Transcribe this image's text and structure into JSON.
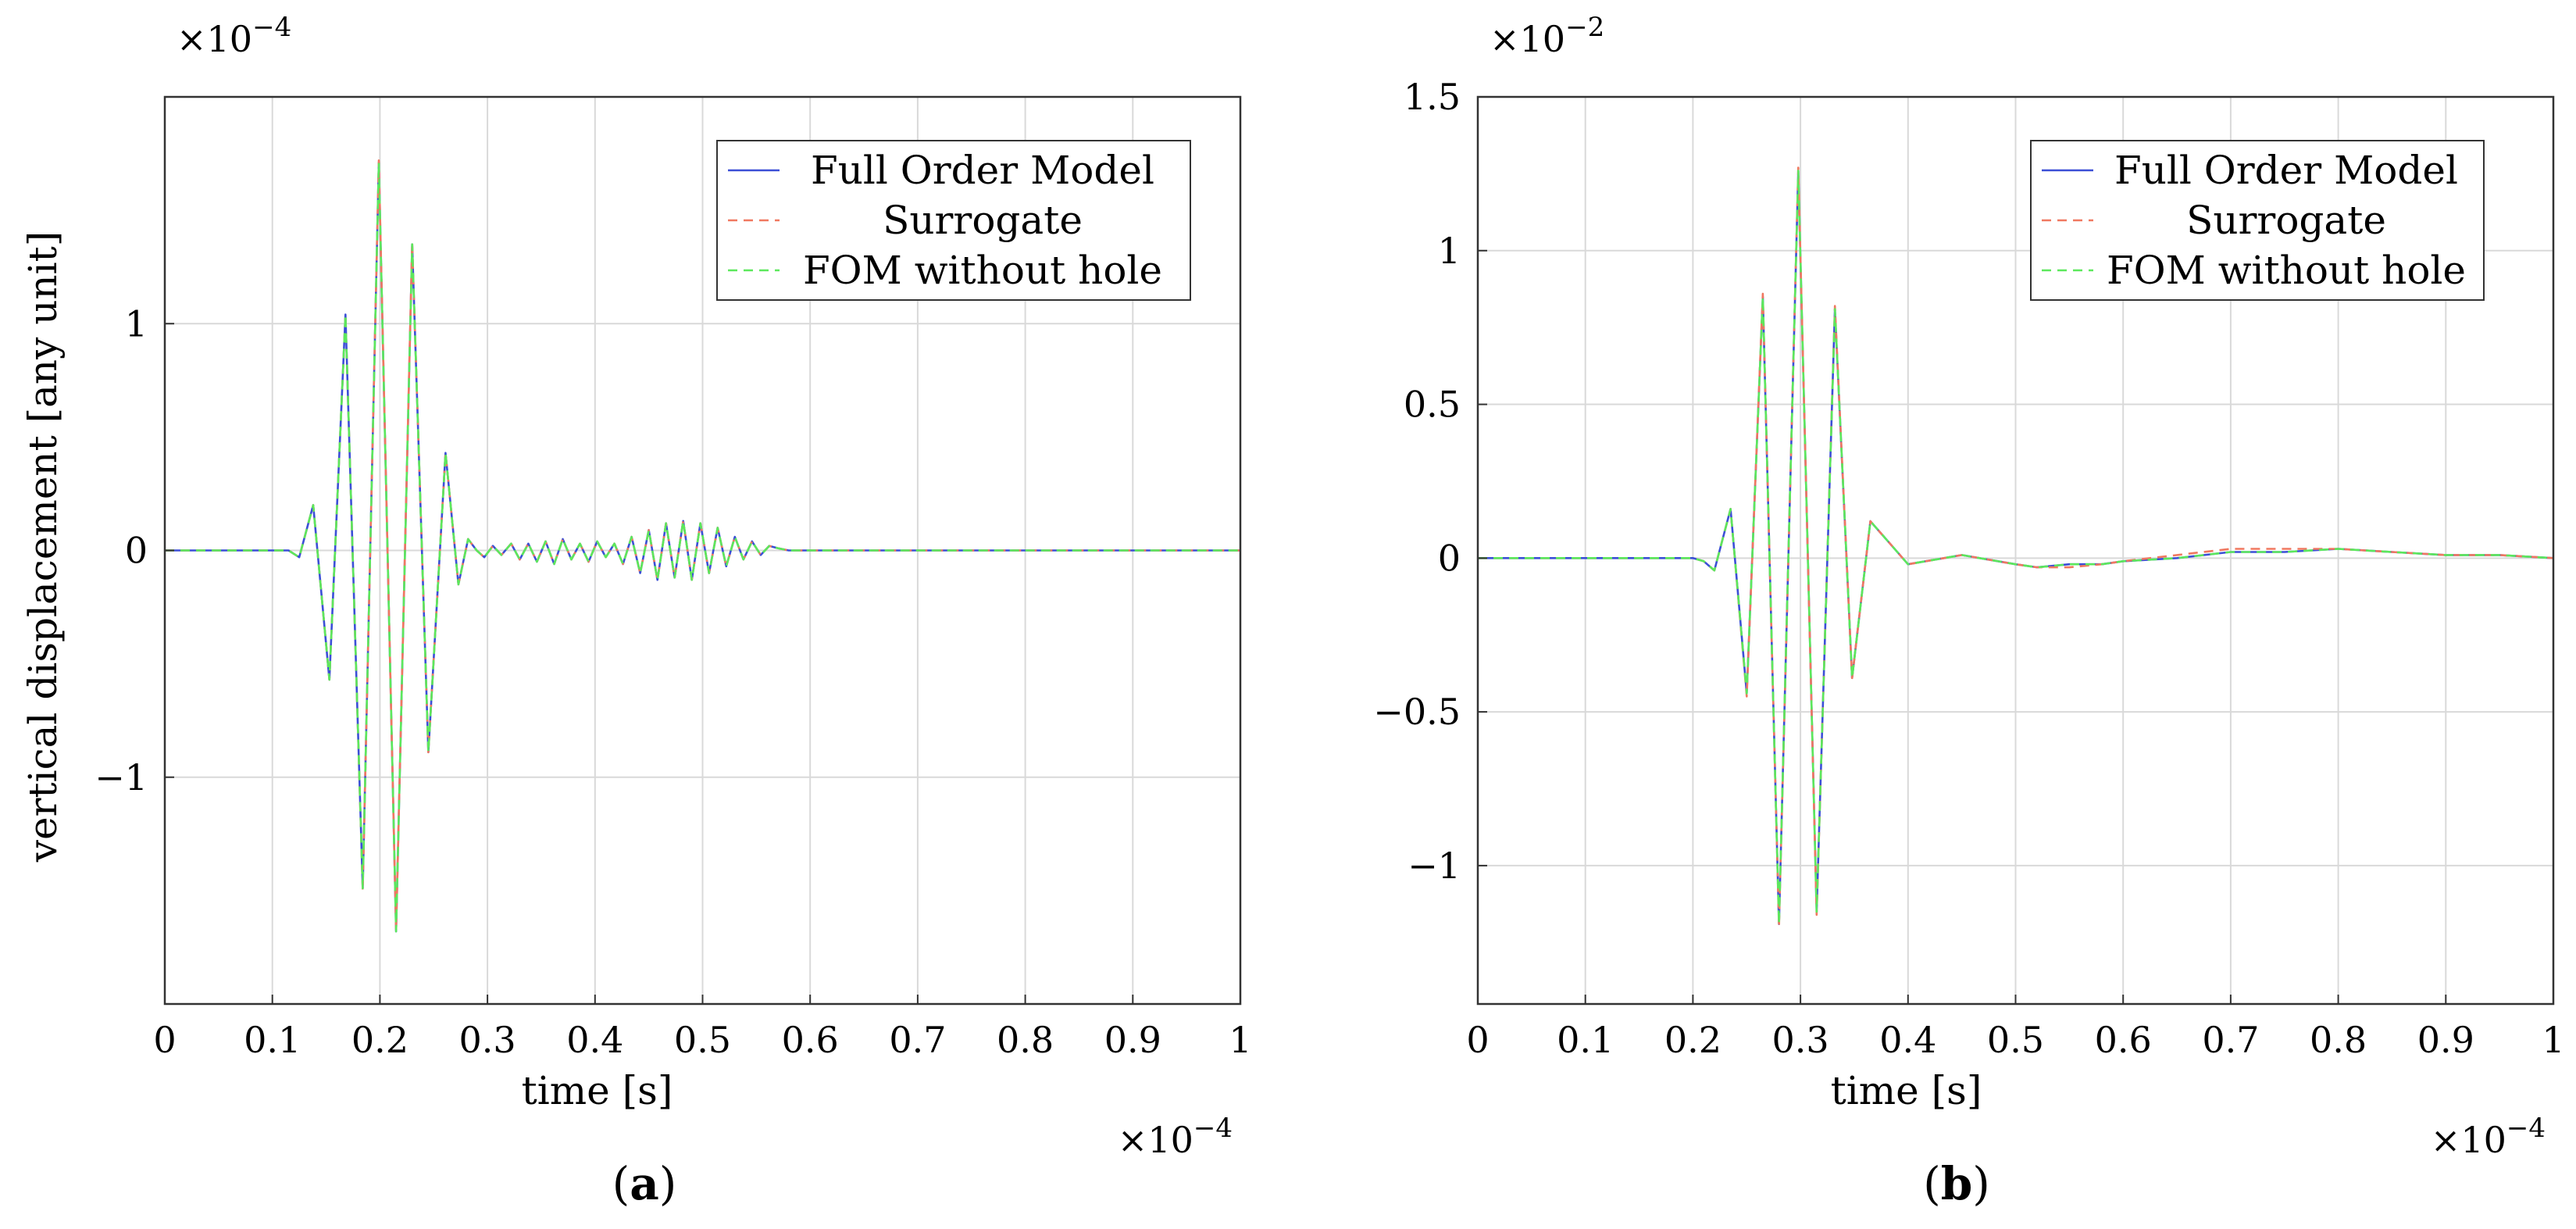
{
  "chart_data": [
    {
      "type": "line",
      "panel": "a",
      "caption": {
        "open": "(",
        "letter": "a",
        "close": ")"
      },
      "xlabel": "time [s]",
      "ylabel": "vertical displacement [any unit]",
      "x_multiplier": {
        "base": "×10",
        "exp": "−4"
      },
      "y_multiplier": {
        "base": "×10",
        "exp": "−4"
      },
      "xlim": [
        0,
        1
      ],
      "ylim": [
        -2,
        2
      ],
      "x_ticks": [
        0,
        0.1,
        0.2,
        0.3,
        0.4,
        0.5,
        0.6,
        0.7,
        0.8,
        0.9,
        1
      ],
      "x_tick_labels": [
        "0",
        "0.1",
        "0.2",
        "0.3",
        "0.4",
        "0.5",
        "0.6",
        "0.7",
        "0.8",
        "0.9",
        "1"
      ],
      "y_ticks": [
        -1,
        0,
        1
      ],
      "y_tick_labels": [
        "−1",
        "0",
        "1"
      ],
      "grid": true,
      "legend_position": "top-right",
      "legend": [
        "Full Order Model",
        "Surrogate",
        "FOM without hole"
      ],
      "series": [
        {
          "name": "Full Order Model",
          "style": "solid",
          "color": "#3b4fd6",
          "x": [
            0,
            0.115,
            0.125,
            0.138,
            0.153,
            0.168,
            0.184,
            0.199,
            0.215,
            0.23,
            0.245,
            0.261,
            0.273,
            0.282,
            0.29,
            0.297,
            0.305,
            0.313,
            0.322,
            0.33,
            0.338,
            0.346,
            0.354,
            0.362,
            0.37,
            0.378,
            0.386,
            0.394,
            0.402,
            0.41,
            0.418,
            0.426,
            0.434,
            0.442,
            0.45,
            0.458,
            0.466,
            0.474,
            0.482,
            0.49,
            0.498,
            0.506,
            0.514,
            0.522,
            0.53,
            0.538,
            0.546,
            0.554,
            0.562,
            0.57,
            0.58,
            0.6,
            0.7,
            0.8,
            0.9,
            1.0
          ],
          "values": [
            0,
            0,
            -0.03,
            0.2,
            -0.57,
            1.04,
            -1.49,
            1.71,
            -1.68,
            1.35,
            -0.89,
            0.43,
            -0.15,
            0.05,
            0.0,
            -0.03,
            0.02,
            -0.02,
            0.03,
            -0.04,
            0.03,
            -0.05,
            0.04,
            -0.06,
            0.05,
            -0.04,
            0.03,
            -0.05,
            0.04,
            -0.03,
            0.03,
            -0.06,
            0.06,
            -0.1,
            0.09,
            -0.13,
            0.12,
            -0.12,
            0.13,
            -0.13,
            0.12,
            -0.1,
            0.1,
            -0.07,
            0.06,
            -0.04,
            0.04,
            -0.02,
            0.02,
            0.01,
            0.0,
            0.0,
            0.0,
            0.0,
            0.0,
            0.0
          ]
        },
        {
          "name": "Surrogate",
          "style": "dashed",
          "color": "#f07860",
          "x": [
            0,
            0.115,
            0.125,
            0.138,
            0.153,
            0.168,
            0.184,
            0.199,
            0.215,
            0.23,
            0.245,
            0.261,
            0.273,
            0.282,
            0.29,
            0.297,
            0.305,
            0.313,
            0.322,
            0.33,
            0.338,
            0.346,
            0.354,
            0.362,
            0.37,
            0.378,
            0.386,
            0.394,
            0.402,
            0.41,
            0.418,
            0.426,
            0.434,
            0.442,
            0.45,
            0.458,
            0.466,
            0.474,
            0.482,
            0.49,
            0.498,
            0.506,
            0.514,
            0.522,
            0.53,
            0.538,
            0.546,
            0.554,
            0.562,
            0.57,
            0.58,
            0.6,
            0.7,
            0.8,
            0.9,
            1.0
          ],
          "values": [
            0,
            0,
            -0.03,
            0.2,
            -0.57,
            1.04,
            -1.5,
            1.72,
            -1.68,
            1.36,
            -0.89,
            0.43,
            -0.15,
            0.05,
            0.0,
            -0.03,
            0.02,
            -0.02,
            0.03,
            -0.04,
            0.03,
            -0.05,
            0.04,
            -0.06,
            0.05,
            -0.04,
            0.03,
            -0.05,
            0.04,
            -0.03,
            0.03,
            -0.06,
            0.06,
            -0.1,
            0.09,
            -0.13,
            0.12,
            -0.12,
            0.13,
            -0.13,
            0.12,
            -0.1,
            0.1,
            -0.07,
            0.06,
            -0.04,
            0.04,
            -0.02,
            0.02,
            0.01,
            0.0,
            0.0,
            0.0,
            0.0,
            0.0,
            0.0
          ]
        },
        {
          "name": "FOM without hole",
          "style": "dashed",
          "color": "#5ce85c",
          "x": [
            0,
            0.115,
            0.125,
            0.138,
            0.153,
            0.168,
            0.184,
            0.199,
            0.215,
            0.23,
            0.245,
            0.261,
            0.273,
            0.282,
            0.29,
            0.297,
            0.305,
            0.313,
            0.322,
            0.33,
            0.338,
            0.346,
            0.354,
            0.362,
            0.37,
            0.378,
            0.386,
            0.394,
            0.402,
            0.41,
            0.418,
            0.426,
            0.434,
            0.442,
            0.45,
            0.458,
            0.466,
            0.474,
            0.482,
            0.49,
            0.498,
            0.506,
            0.514,
            0.522,
            0.53,
            0.538,
            0.546,
            0.554,
            0.562,
            0.57,
            0.58,
            0.6,
            0.7,
            0.8,
            0.9,
            1.0
          ],
          "values": [
            0,
            0,
            -0.03,
            0.2,
            -0.57,
            1.04,
            -1.49,
            1.71,
            -1.68,
            1.35,
            -0.89,
            0.43,
            -0.15,
            0.05,
            0.0,
            -0.03,
            0.02,
            -0.02,
            0.03,
            -0.04,
            0.03,
            -0.05,
            0.04,
            -0.06,
            0.05,
            -0.04,
            0.03,
            -0.05,
            0.04,
            -0.03,
            0.03,
            -0.06,
            0.06,
            -0.1,
            0.09,
            -0.13,
            0.12,
            -0.12,
            0.13,
            -0.13,
            0.12,
            -0.1,
            0.1,
            -0.07,
            0.06,
            -0.04,
            0.04,
            -0.02,
            0.02,
            0.01,
            0.0,
            0.0,
            0.0,
            0.0,
            0.0,
            0.0
          ]
        }
      ]
    },
    {
      "type": "line",
      "panel": "b",
      "caption": {
        "open": "(",
        "letter": "b",
        "close": ")"
      },
      "xlabel": "time [s]",
      "ylabel": "",
      "x_multiplier": {
        "base": "×10",
        "exp": "−4"
      },
      "y_multiplier": {
        "base": "×10",
        "exp": "−2"
      },
      "xlim": [
        0,
        1
      ],
      "ylim": [
        -1.45,
        1.5
      ],
      "x_ticks": [
        0,
        0.1,
        0.2,
        0.3,
        0.4,
        0.5,
        0.6,
        0.7,
        0.8,
        0.9,
        1
      ],
      "x_tick_labels": [
        "0",
        "0.1",
        "0.2",
        "0.3",
        "0.4",
        "0.5",
        "0.6",
        "0.7",
        "0.8",
        "0.9",
        "1"
      ],
      "y_ticks": [
        -1,
        -0.5,
        0,
        0.5,
        1,
        1.5
      ],
      "y_tick_labels": [
        "−1",
        "−0.5",
        "0",
        "0.5",
        "1",
        "1.5"
      ],
      "grid": true,
      "legend_position": "top-right",
      "legend": [
        "Full Order Model",
        "Surrogate",
        "FOM without hole"
      ],
      "series": [
        {
          "name": "Full Order Model",
          "style": "solid",
          "color": "#3b4fd6",
          "x": [
            0,
            0.2,
            0.21,
            0.22,
            0.235,
            0.25,
            0.265,
            0.28,
            0.298,
            0.315,
            0.332,
            0.348,
            0.365,
            0.38,
            0.4,
            0.45,
            0.5,
            0.52,
            0.55,
            0.58,
            0.6,
            0.65,
            0.7,
            0.75,
            0.8,
            0.85,
            0.9,
            0.95,
            1.0
          ],
          "values": [
            0,
            0,
            -0.01,
            -0.04,
            0.16,
            -0.44,
            0.85,
            -1.19,
            1.26,
            -1.15,
            0.81,
            -0.39,
            0.12,
            0.06,
            -0.02,
            0.01,
            -0.02,
            -0.03,
            -0.02,
            -0.02,
            -0.01,
            0.0,
            0.02,
            0.02,
            0.03,
            0.02,
            0.01,
            0.01,
            0.0
          ]
        },
        {
          "name": "Surrogate",
          "style": "dashed",
          "color": "#f07860",
          "x": [
            0,
            0.2,
            0.21,
            0.22,
            0.235,
            0.25,
            0.265,
            0.28,
            0.298,
            0.315,
            0.332,
            0.348,
            0.365,
            0.38,
            0.4,
            0.45,
            0.5,
            0.52,
            0.55,
            0.58,
            0.6,
            0.65,
            0.7,
            0.75,
            0.8,
            0.85,
            0.9,
            0.95,
            1.0
          ],
          "values": [
            0,
            0,
            -0.01,
            -0.04,
            0.16,
            -0.45,
            0.86,
            -1.2,
            1.27,
            -1.16,
            0.82,
            -0.39,
            0.12,
            0.06,
            -0.02,
            0.01,
            -0.02,
            -0.03,
            -0.03,
            -0.02,
            -0.01,
            0.01,
            0.03,
            0.03,
            0.03,
            0.02,
            0.01,
            0.01,
            0.0
          ]
        },
        {
          "name": "FOM without hole",
          "style": "dashed",
          "color": "#5ce85c",
          "x": [
            0,
            0.2,
            0.21,
            0.22,
            0.235,
            0.25,
            0.265,
            0.28,
            0.298,
            0.315,
            0.332,
            0.348,
            0.365,
            0.38,
            0.4,
            0.45,
            0.5,
            0.52,
            0.55,
            0.58,
            0.6,
            0.65,
            0.7,
            0.75,
            0.8,
            0.85,
            0.9,
            0.95,
            1.0
          ],
          "values": [
            0,
            0,
            -0.01,
            -0.04,
            0.16,
            -0.44,
            0.85,
            -1.19,
            1.26,
            -1.15,
            0.81,
            -0.39,
            0.12,
            0.06,
            -0.02,
            0.01,
            -0.02,
            -0.03,
            -0.02,
            -0.02,
            -0.01,
            0.0,
            0.02,
            0.02,
            0.03,
            0.02,
            0.01,
            0.01,
            0.0
          ]
        }
      ]
    }
  ]
}
